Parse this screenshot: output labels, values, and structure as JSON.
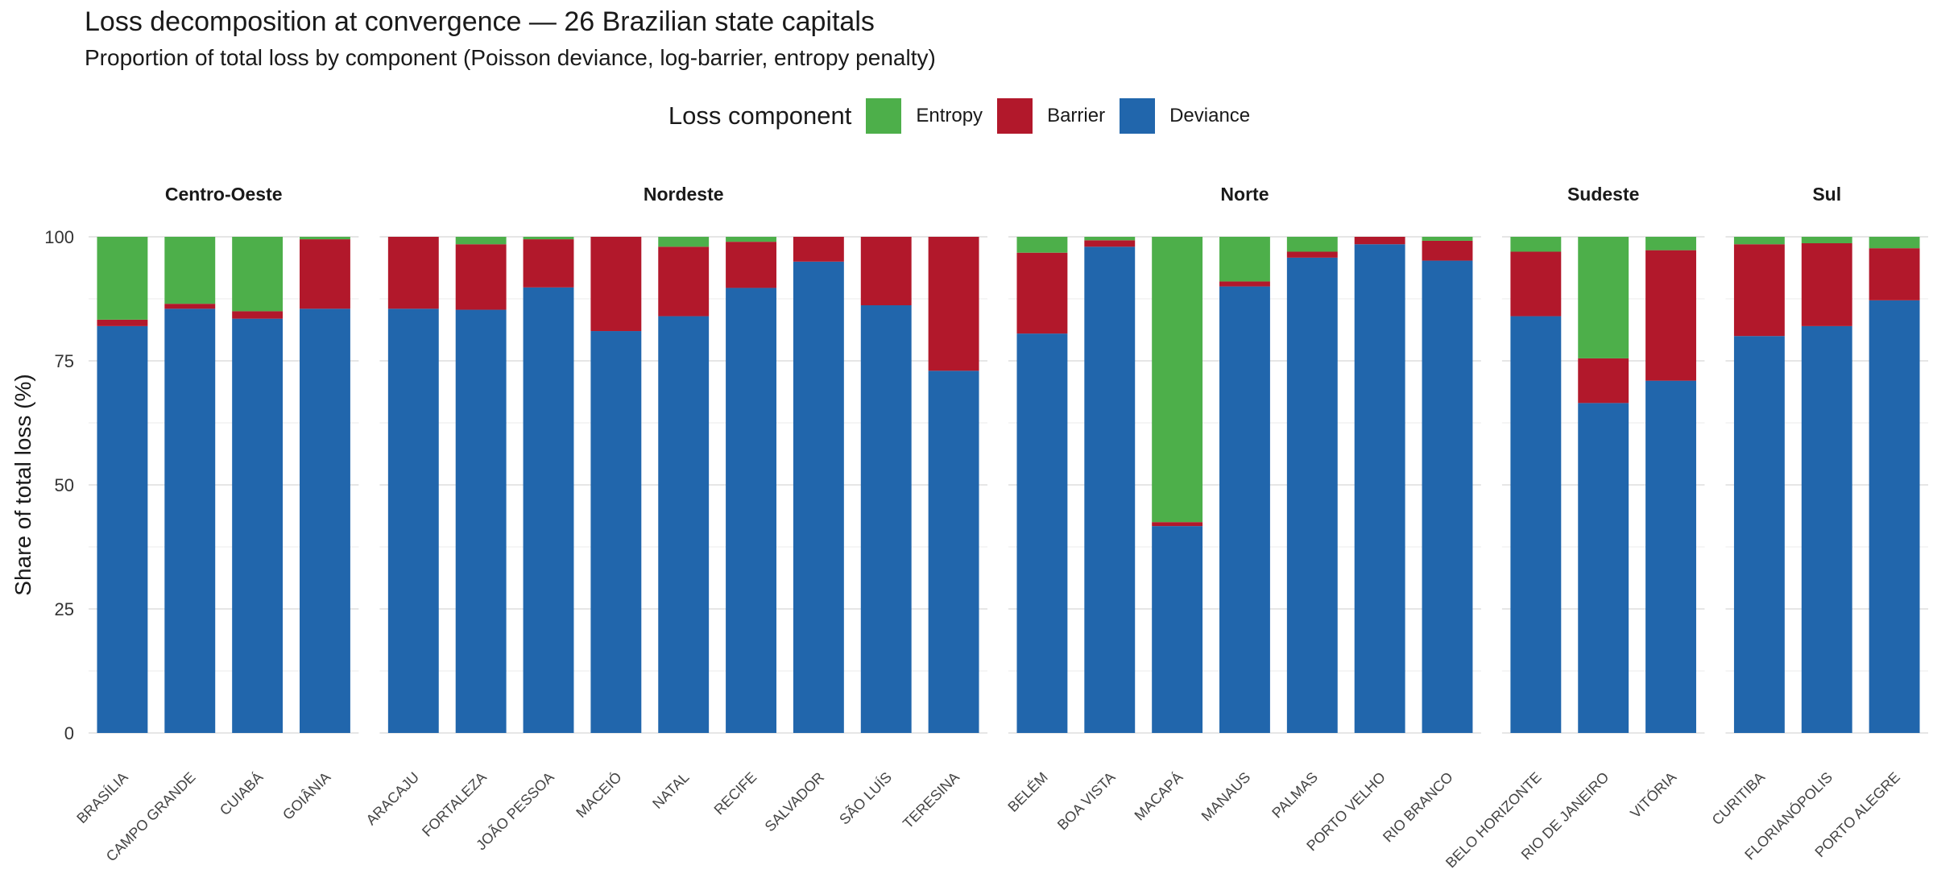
{
  "chart_data": {
    "type": "bar",
    "stacked": true,
    "title": "Loss decomposition at convergence — 26 Brazilian state capitals",
    "subtitle": "Proportion of total loss by component (Poisson deviance, log-barrier, entropy penalty)",
    "ylabel": "Share of total loss (%)",
    "xlabel": "",
    "ylim": [
      0,
      100
    ],
    "yticks": [
      "0",
      "25",
      "50",
      "75",
      "100"
    ],
    "grid": true,
    "legend": {
      "title": "Loss component",
      "position": "top",
      "entries": [
        {
          "label": "Entropy",
          "color": "#4daf4a"
        },
        {
          "label": "Barrier",
          "color": "#b2182b"
        },
        {
          "label": "Deviance",
          "color": "#2166ac"
        }
      ]
    },
    "stack_order_bottom_to_top": [
      "Deviance",
      "Barrier",
      "Entropy"
    ],
    "panels": [
      {
        "region": "Centro-Oeste",
        "categories": [
          "BRASÍLIA",
          "CAMPO GRANDE",
          "CUIABÁ",
          "GOIÂNIA"
        ],
        "series": [
          {
            "name": "Deviance",
            "values": [
              82,
              85.5,
              83.5,
              85.5
            ]
          },
          {
            "name": "Barrier",
            "values": [
              1.3,
              1,
              1.5,
              14
            ]
          },
          {
            "name": "Entropy",
            "values": [
              16.7,
              13.5,
              15,
              0.5
            ]
          }
        ]
      },
      {
        "region": "Nordeste",
        "categories": [
          "ARACAJU",
          "FORTALEZA",
          "JOÃO PESSOA",
          "MACEIÓ",
          "NATAL",
          "RECIFE",
          "SALVADOR",
          "SÃO LUÍS",
          "TERESINA"
        ],
        "series": [
          {
            "name": "Deviance",
            "values": [
              85.5,
              85.3,
              89.8,
              81,
              84,
              89.7,
              95,
              86.2,
              73
            ]
          },
          {
            "name": "Barrier",
            "values": [
              14.5,
              13.2,
              9.7,
              19,
              14,
              9.3,
              5,
              13.8,
              27
            ]
          },
          {
            "name": "Entropy",
            "values": [
              0,
              1.5,
              0.5,
              0,
              2,
              1,
              0,
              0,
              0
            ]
          }
        ]
      },
      {
        "region": "Norte",
        "categories": [
          "BELÉM",
          "BOA VISTA",
          "MACAPÁ",
          "MANAUS",
          "PALMAS",
          "PORTO VELHO",
          "RIO BRANCO"
        ],
        "series": [
          {
            "name": "Deviance",
            "values": [
              80.5,
              98,
              41.7,
              90,
              95.8,
              98.5,
              95.2
            ]
          },
          {
            "name": "Barrier",
            "values": [
              16.3,
              1.3,
              0.8,
              1,
              1.2,
              1.5,
              4
            ]
          },
          {
            "name": "Entropy",
            "values": [
              3.2,
              0.7,
              57.5,
              9,
              3,
              0,
              0.8
            ]
          }
        ]
      },
      {
        "region": "Sudeste",
        "categories": [
          "BELO HORIZONTE",
          "RIO DE JANEIRO",
          "VITÓRIA"
        ],
        "series": [
          {
            "name": "Deviance",
            "values": [
              84,
              66.5,
              71
            ]
          },
          {
            "name": "Barrier",
            "values": [
              13,
              9,
              26.3
            ]
          },
          {
            "name": "Entropy",
            "values": [
              3,
              24.5,
              2.7
            ]
          }
        ]
      },
      {
        "region": "Sul",
        "categories": [
          "CURITIBA",
          "FLORIANÓPOLIS",
          "PORTO ALEGRE"
        ],
        "series": [
          {
            "name": "Deviance",
            "values": [
              80,
              82,
              87.2
            ]
          },
          {
            "name": "Barrier",
            "values": [
              18.5,
              16.7,
              10.5
            ]
          },
          {
            "name": "Entropy",
            "values": [
              1.5,
              1.3,
              2.3
            ]
          }
        ]
      }
    ]
  }
}
